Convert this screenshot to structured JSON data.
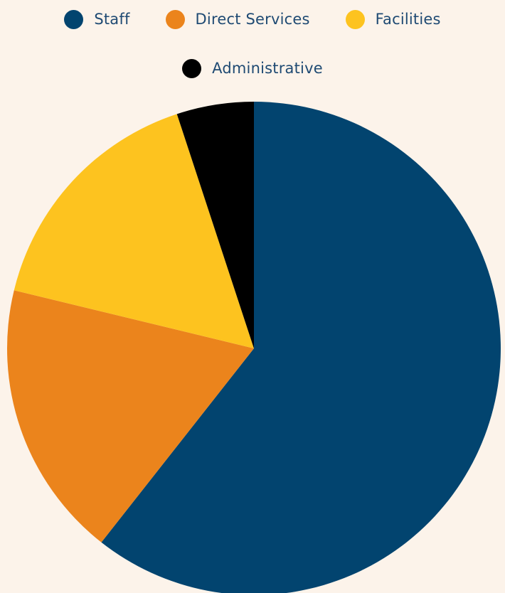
{
  "chart_data": {
    "type": "pie",
    "legend": "top",
    "start_angle_deg": 0,
    "direction": "clockwise",
    "slices": [
      {
        "name": "Staff",
        "value": 60,
        "color": "#02446F"
      },
      {
        "name": "Direct Services",
        "value": 18,
        "color": "#EB841C"
      },
      {
        "name": "Facilities",
        "value": 16,
        "color": "#FDC31F"
      },
      {
        "name": "Administrative",
        "value": 5,
        "color": "#000000"
      }
    ]
  }
}
